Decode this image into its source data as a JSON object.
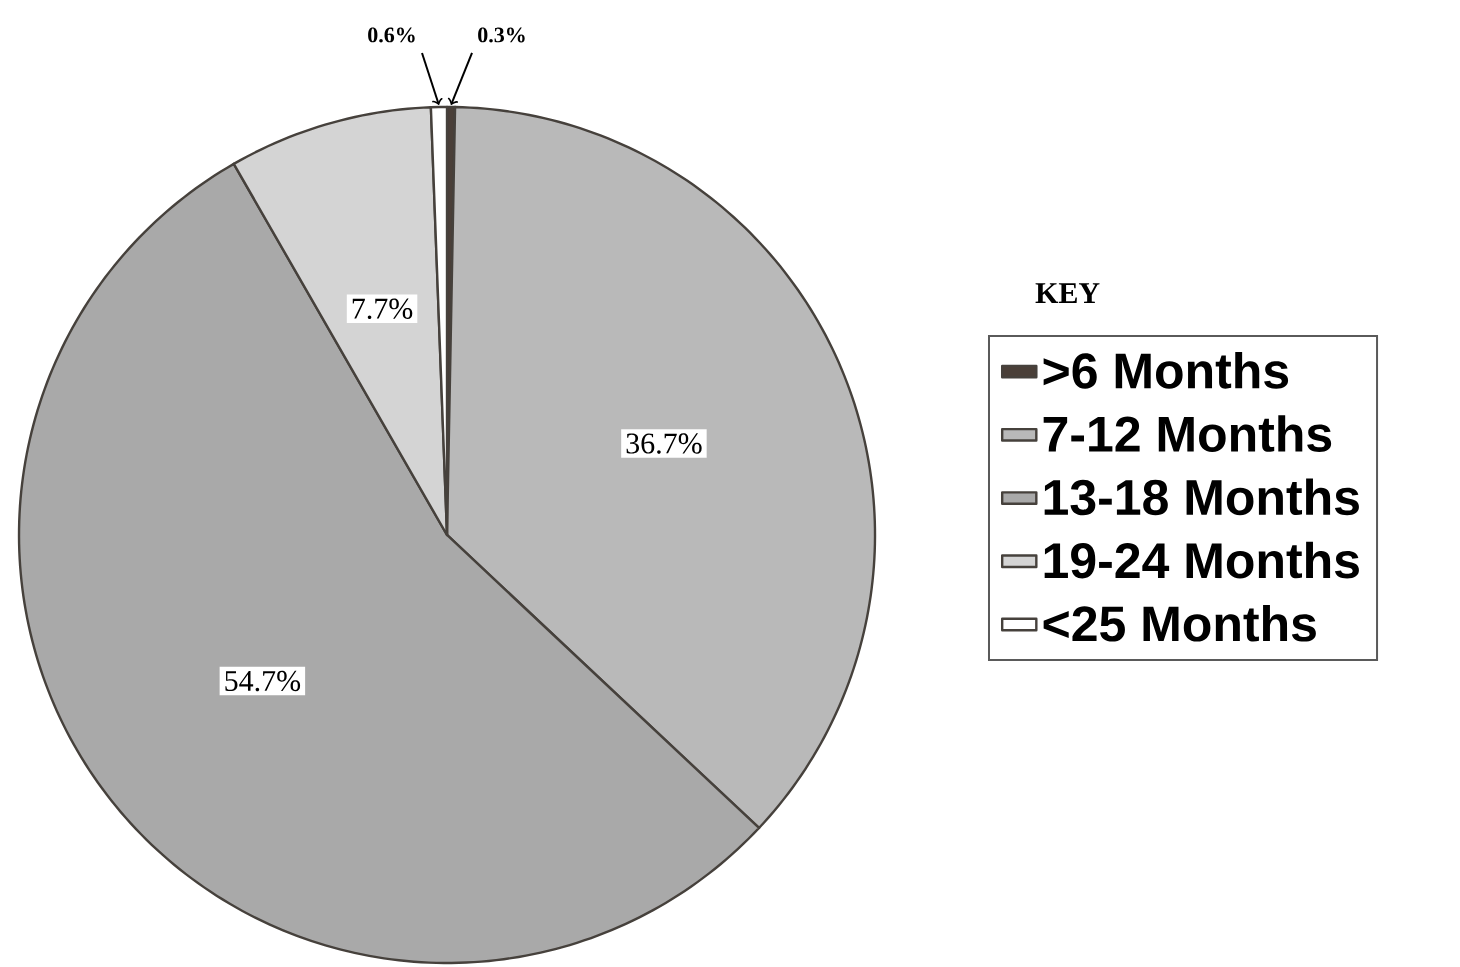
{
  "chart_data": {
    "type": "pie",
    "legend_title": "KEY",
    "legend": "right",
    "categories": [
      ">6 Months",
      "7-12 Months",
      "13-18 Months",
      "19-24 Months",
      "<25 Months"
    ],
    "values": [
      0.3,
      36.7,
      54.7,
      7.7,
      0.6
    ],
    "value_labels": [
      "0.3%",
      "36.7%",
      "54.7%",
      "7.7%",
      "0.6%"
    ],
    "colors": [
      "#4a3f38",
      "#b9b9b9",
      "#a9a9a9",
      "#d4d4d4",
      "#ffffff"
    ]
  }
}
